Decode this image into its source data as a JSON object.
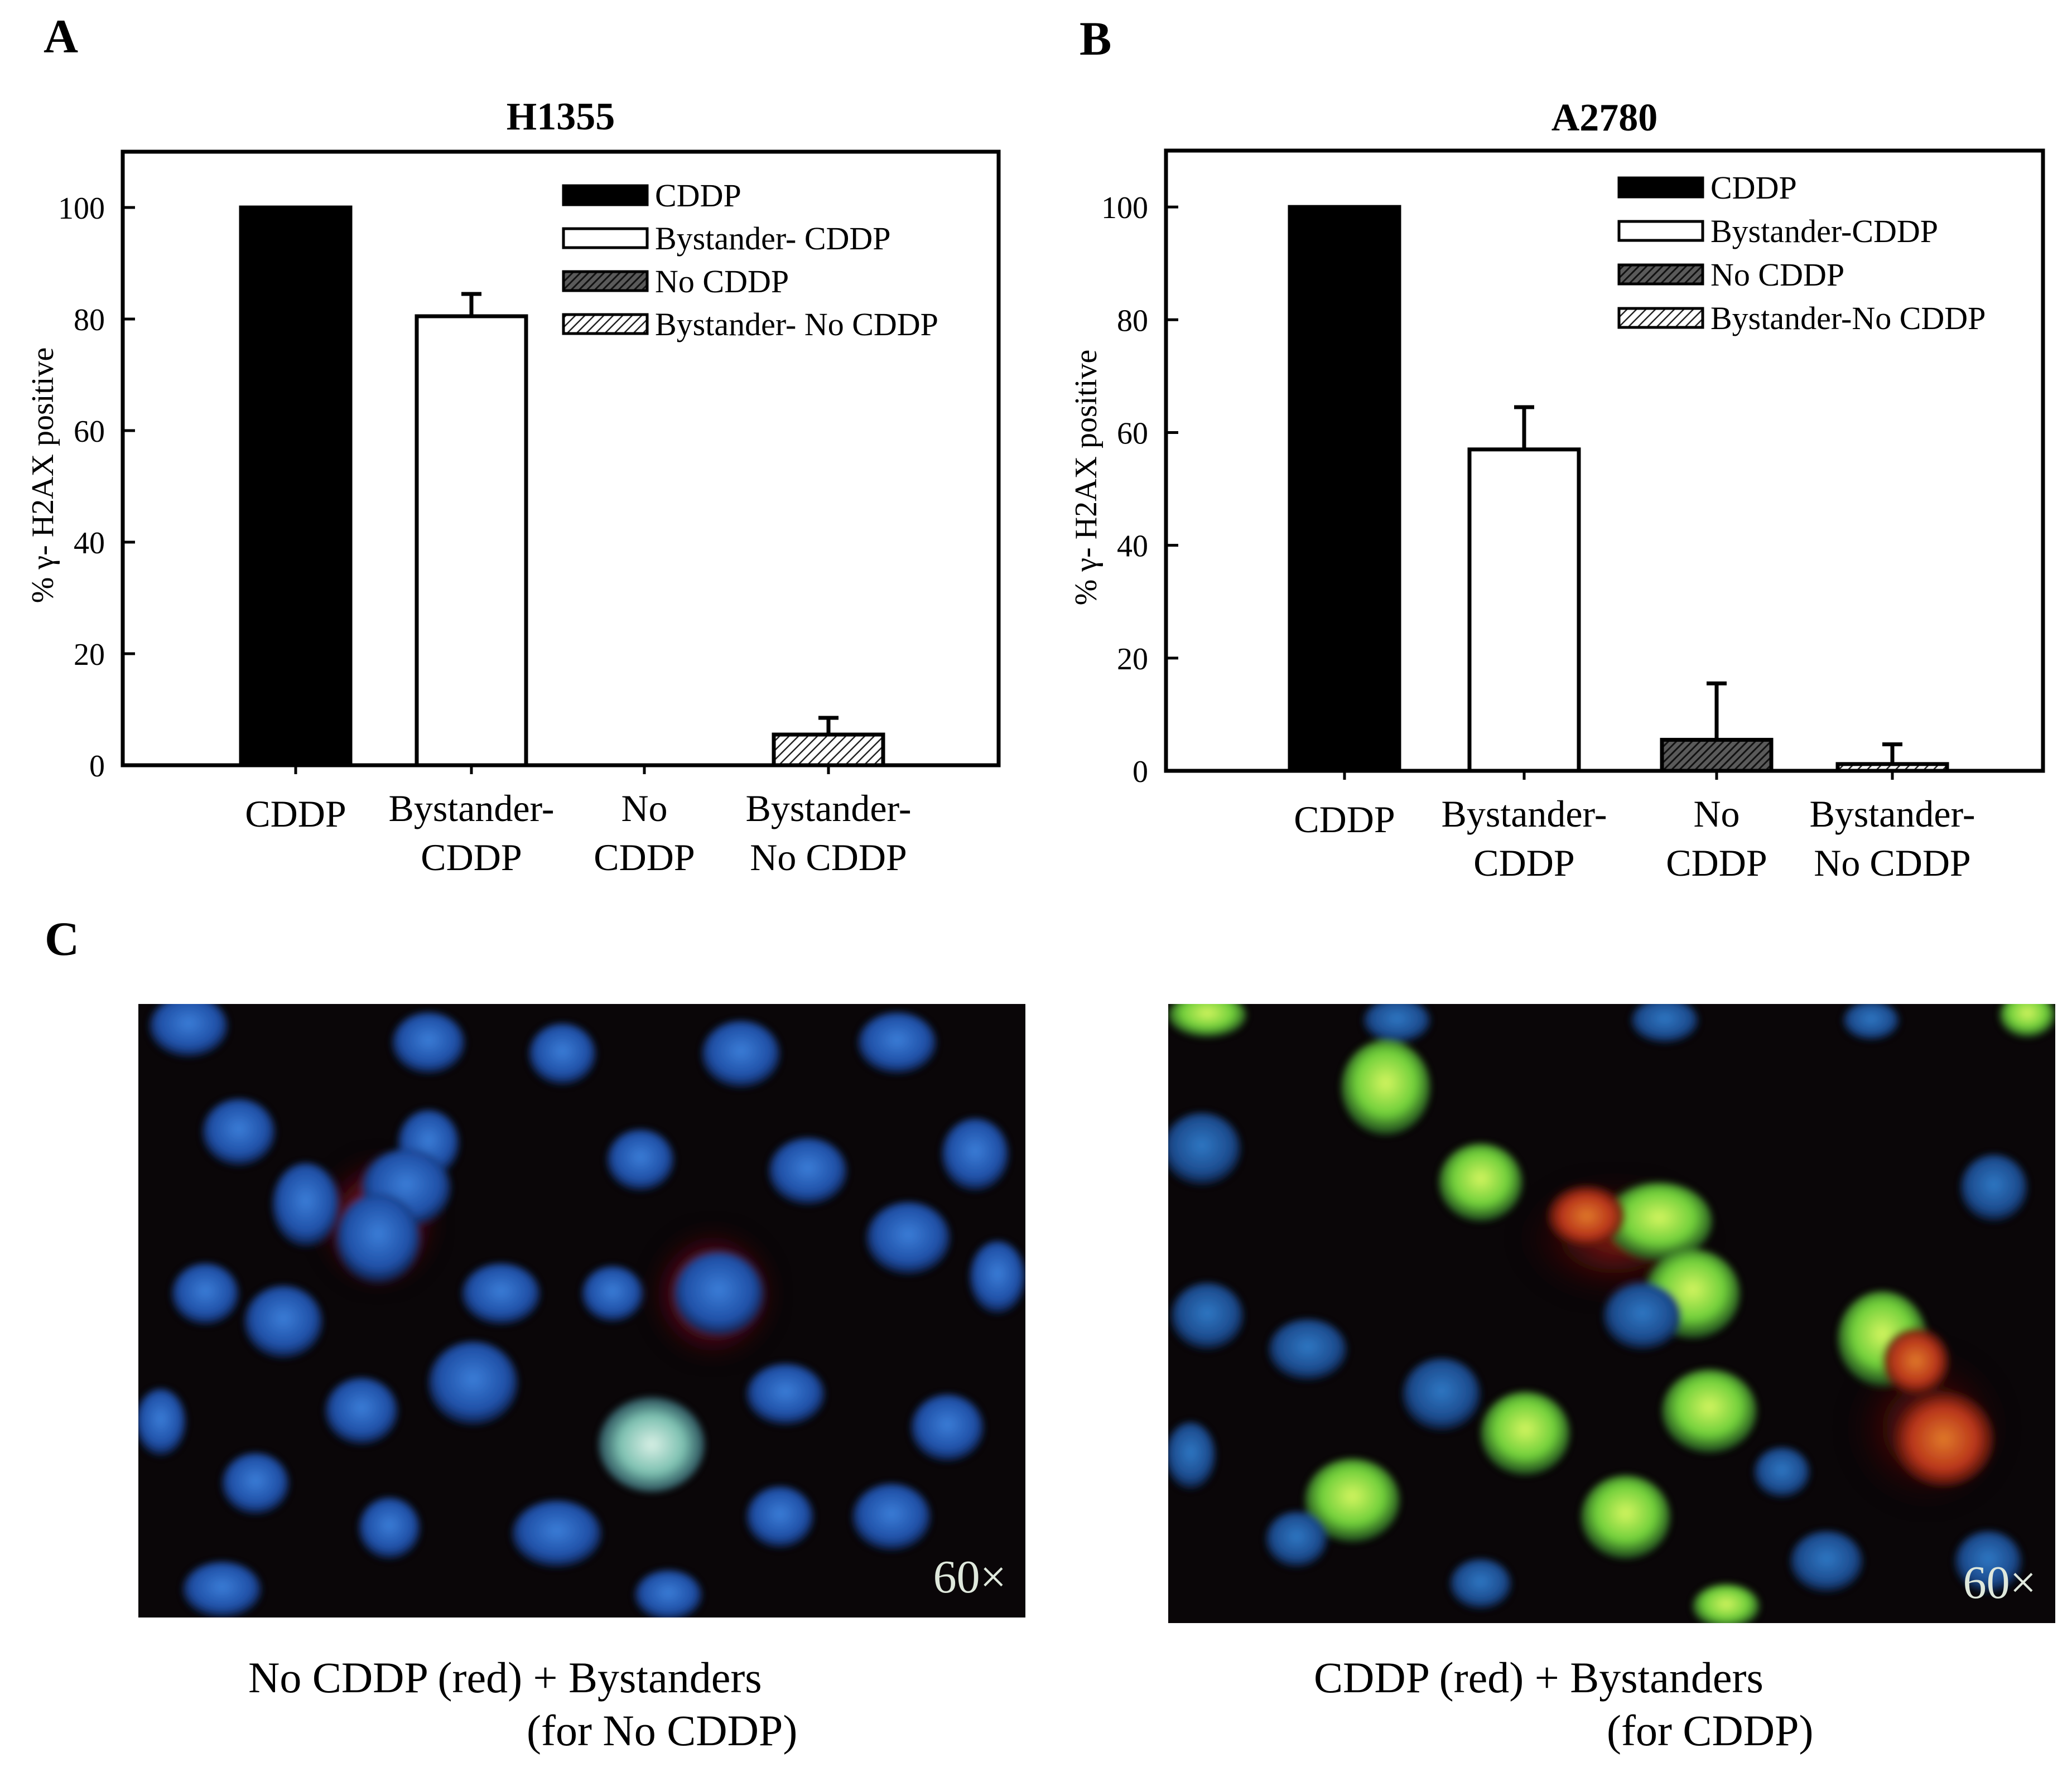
{
  "panels": {
    "a": "A",
    "b": "B",
    "c": "C"
  },
  "chart_data": [
    {
      "type": "bar",
      "title": "H1355",
      "ylabel": "% γ- H2AX positive",
      "xlabel": "",
      "ylim": [
        0,
        110
      ],
      "yticks": [
        0,
        20,
        40,
        60,
        80,
        100
      ],
      "categories": [
        "CDDP",
        "Bystander-\nCDDP",
        "No\nCDDP",
        "Bystander-\nNo CDDP"
      ],
      "values": [
        100,
        80.5,
        0,
        5.5
      ],
      "errors": [
        0,
        4,
        0,
        3
      ],
      "legend": [
        "CDDP",
        "Bystander- CDDP",
        "No CDDP",
        "Bystander- No CDDP"
      ],
      "legend_position": "top-right",
      "grid": false
    },
    {
      "type": "bar",
      "title": "A2780",
      "ylabel": "% γ- H2AX positive",
      "xlabel": "",
      "ylim": [
        0,
        110
      ],
      "yticks": [
        0,
        20,
        40,
        60,
        80,
        100
      ],
      "categories": [
        "CDDP",
        "Bystander-\nCDDP",
        "No\nCDDP",
        "Bystander-\nNo CDDP"
      ],
      "values": [
        100,
        57,
        5.5,
        1.2
      ],
      "errors": [
        0,
        7.5,
        10,
        3.5
      ],
      "legend": [
        "CDDP",
        "Bystander-CDDP",
        "No CDDP",
        "Bystander-No CDDP"
      ],
      "legend_position": "top-right",
      "grid": false
    }
  ],
  "bar_styles": {
    "colors": {
      "CDDP": "#000000",
      "Bystander-CDDP": "#ffffff",
      "No CDDP": "#3a3a3a",
      "Bystander-No CDDP": "#8c8c8c"
    },
    "fills": [
      "solid-black",
      "white",
      "dense-hatch",
      "light-hatch"
    ]
  },
  "micrographs": [
    {
      "magnification": "60×",
      "caption_line1": "No CDDP (red) + Bystanders",
      "caption_line2": "(for No CDDP)"
    },
    {
      "magnification": "60×",
      "caption_line1": "CDDP (red) + Bystanders",
      "caption_line2": "(for CDDP)"
    }
  ]
}
